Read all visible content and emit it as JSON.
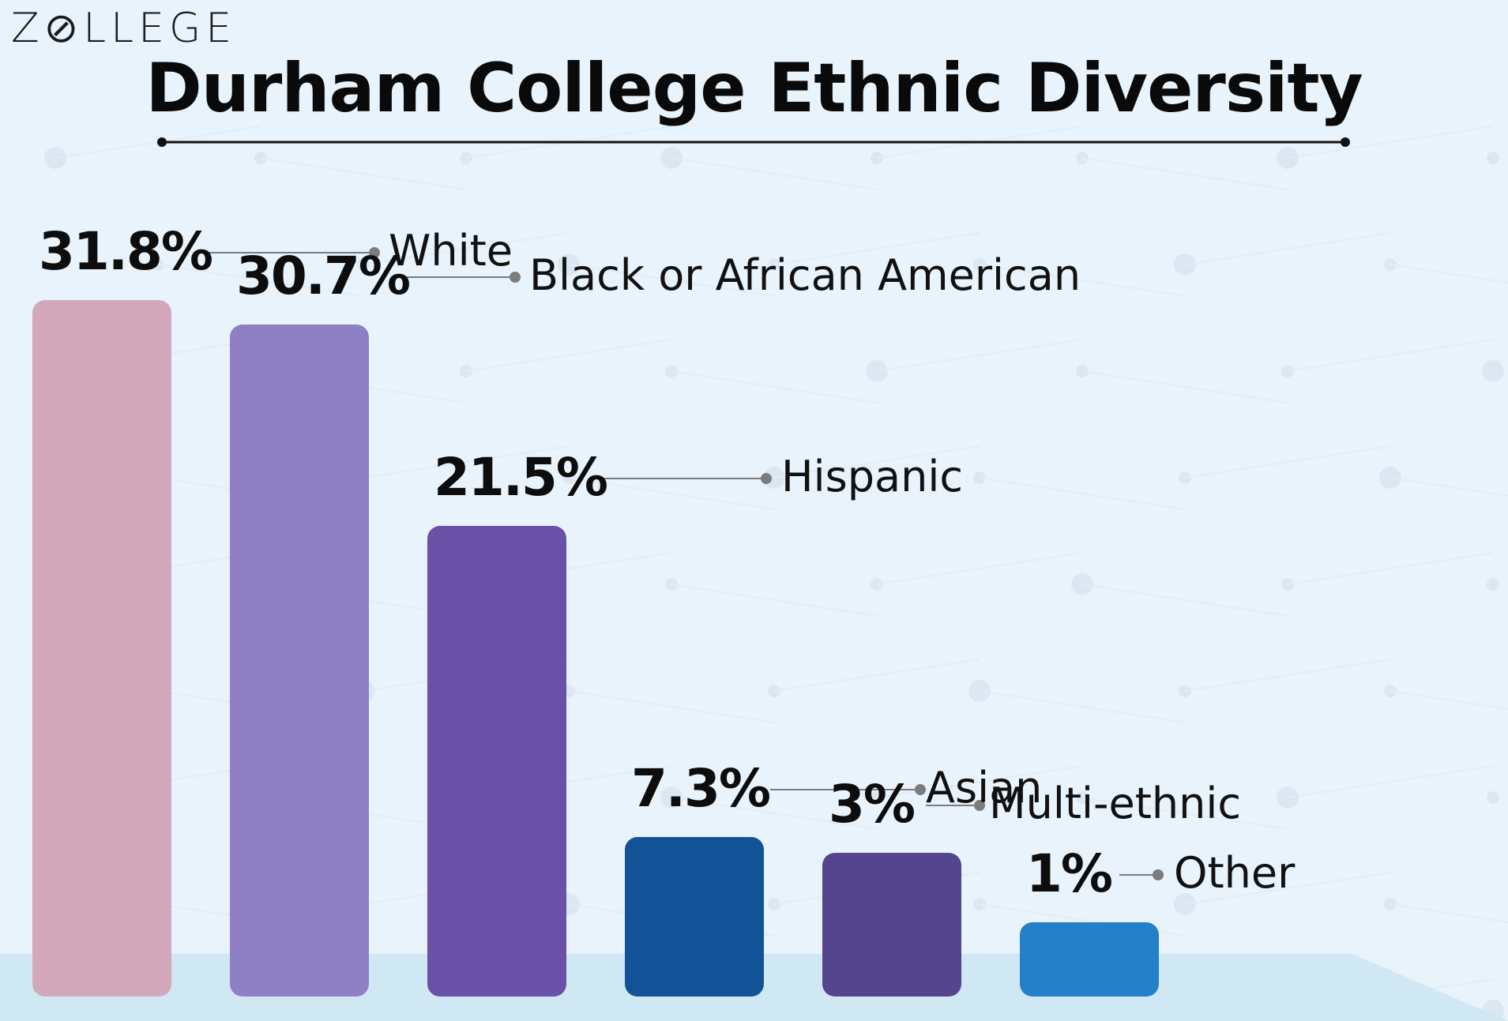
{
  "brand": {
    "logo": "Z⊘LLEGE"
  },
  "chart_data": {
    "type": "bar",
    "title": "Durham College Ethnic Diversity",
    "xlabel": "",
    "ylabel": "",
    "ylim": [
      0,
      35
    ],
    "categories": [
      "White",
      "Black or African American",
      "Hispanic",
      "Asian",
      "Multi-ethnic",
      "Other"
    ],
    "values": [
      31.8,
      30.7,
      21.5,
      7.3,
      3,
      1
    ],
    "value_labels": [
      "31.8%",
      "30.7%",
      "21.5%",
      "7.3%",
      "3%",
      "1%"
    ],
    "colors": [
      "#d4a8bb",
      "#8f80c6",
      "#6a50a7",
      "#115396",
      "#54458e",
      "#2480c8"
    ]
  }
}
